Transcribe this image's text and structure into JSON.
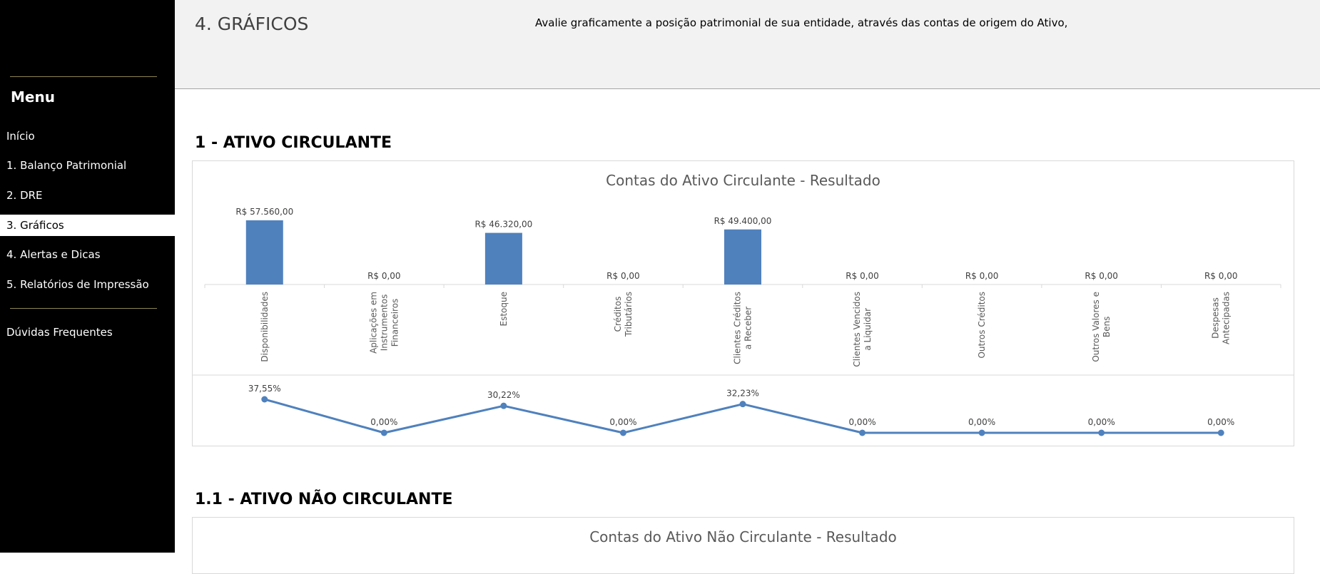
{
  "sidebar": {
    "menu_title": "Menu",
    "items": [
      {
        "label": "Início"
      },
      {
        "label": "1. Balanço Patrimonial"
      },
      {
        "label": "2. DRE"
      },
      {
        "label": "3. Gráficos"
      },
      {
        "label": "4. Alertas e Dicas"
      },
      {
        "label": "5. Relatórios de Impressão"
      }
    ],
    "faq_label": "Dúvidas Frequentes"
  },
  "header": {
    "title": "4. GRÁFICOS",
    "description": "Avalie graficamente a posição patrimonial de sua entidade, através das contas de origem do Ativo,"
  },
  "sections": {
    "current_assets": "1 - ATIVO CIRCULANTE",
    "non_current_assets": "1.1 - ATIVO NÃO CIRCULANTE"
  },
  "colors": {
    "accent": "#4f81bd",
    "sidebar_bg": "#000000",
    "header_bg": "#f2f2f2"
  },
  "chart_data": [
    {
      "type": "bar",
      "title": "Contas do Ativo Circulante - Resultado",
      "categories": [
        [
          "Disponibilidades"
        ],
        [
          "Aplicações em",
          "Instrumentos",
          "Financeiros"
        ],
        [
          "Estoque"
        ],
        [
          "Créditos",
          "Tributários"
        ],
        [
          "Clientes Créditos",
          "a Receber"
        ],
        [
          "Clientes Vencidos",
          "a Liquidar"
        ],
        [
          "Outros Créditos"
        ],
        [
          "Outros Valores e",
          "Bens"
        ],
        [
          "Despesas",
          "Antecipadas"
        ]
      ],
      "values": [
        57560,
        0,
        46320,
        0,
        49400,
        0,
        0,
        0,
        0
      ],
      "value_labels": [
        "R$ 57.560,00",
        "R$ 0,00",
        "R$ 46.320,00",
        "R$ 0,00",
        "R$ 49.400,00",
        "R$ 0,00",
        "R$ 0,00",
        "R$ 0,00",
        "R$ 0,00"
      ],
      "grid": false,
      "legend": "none"
    },
    {
      "type": "line",
      "categories": [
        "Disponibilidades",
        "Aplicações em Instrumentos Financeiros",
        "Estoque",
        "Créditos Tributários",
        "Clientes Créditos a Receber",
        "Clientes Vencidos a Liquidar",
        "Outros Créditos",
        "Outros Valores e Bens",
        "Despesas Antecipadas"
      ],
      "values": [
        37.55,
        0,
        30.22,
        0,
        32.23,
        0,
        0,
        0,
        0
      ],
      "value_labels": [
        "37,55%",
        "0,00%",
        "30,22%",
        "0,00%",
        "32,23%",
        "0,00%",
        "0,00%",
        "0,00%",
        "0,00%"
      ],
      "grid": false,
      "legend": "none"
    },
    {
      "type": "bar",
      "title": "Contas do Ativo Não Circulante - Resultado"
    }
  ]
}
